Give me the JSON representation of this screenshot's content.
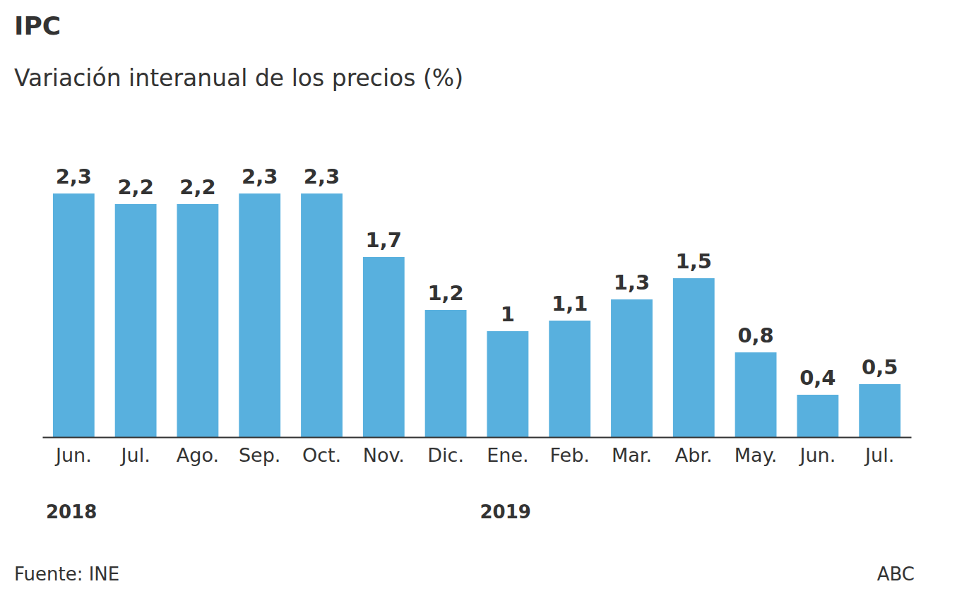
{
  "chart_data": {
    "type": "bar",
    "title": "IPC",
    "subtitle": "Variación interanual de los precios (%)",
    "categories": [
      "Jun.",
      "Jul.",
      "Ago.",
      "Sep.",
      "Oct.",
      "Nov.",
      "Dic.",
      "Ene.",
      "Feb.",
      "Mar.",
      "Abr.",
      "May.",
      "Jun.",
      "Jul."
    ],
    "values": [
      2.3,
      2.2,
      2.2,
      2.3,
      2.3,
      1.7,
      1.2,
      1,
      1.1,
      1.3,
      1.5,
      0.8,
      0.4,
      0.5
    ],
    "value_labels": [
      "2,3",
      "2,2",
      "2,2",
      "2,3",
      "2,3",
      "1,7",
      "1,2",
      "1",
      "1,1",
      "1,3",
      "1,5",
      "0,8",
      "0,4",
      "0,5"
    ],
    "color": "#58b0de",
    "ylim": [
      0,
      2.3
    ],
    "grid": false,
    "data_labels": true,
    "tick_labels": "x",
    "annotations": [
      {
        "text": "2018",
        "category_index": 0
      },
      {
        "text": "2019",
        "category_index": 7
      }
    ],
    "source": "Fuente: INE",
    "credit": "ABC"
  }
}
